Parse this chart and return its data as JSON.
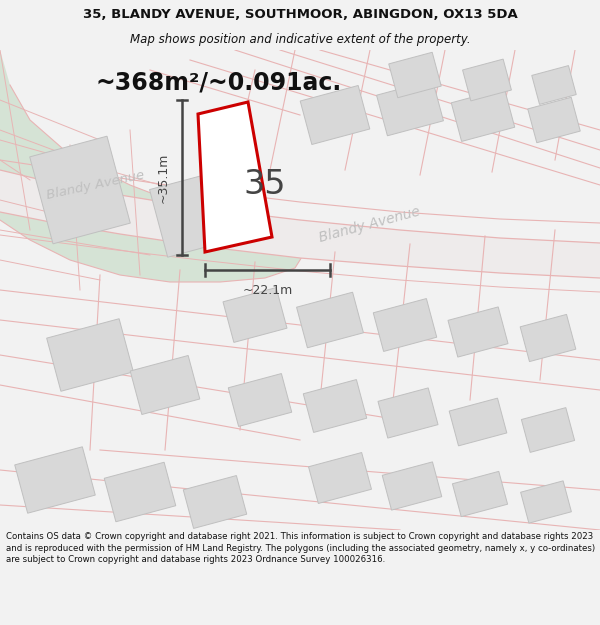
{
  "title_line1": "35, BLANDY AVENUE, SOUTHMOOR, ABINGDON, OX13 5DA",
  "title_line2": "Map shows position and indicative extent of the property.",
  "area_text": "~368m²/~0.091ac.",
  "number_label": "35",
  "dim_vertical": "~35.1m",
  "dim_horizontal": "~22.1m",
  "street_label_lower": "Blandy Avenue",
  "street_label_upper": "Blandy Avenue",
  "footer_text": "Contains OS data © Crown copyright and database right 2021. This information is subject to Crown copyright and database rights 2023 and is reproduced with the permission of HM Land Registry. The polygons (including the associated geometry, namely x, y co-ordinates) are subject to Crown copyright and database rights 2023 Ordnance Survey 100026316.",
  "bg_color": "#f2f2f2",
  "map_bg": "#ffffff",
  "green_color": "#d5e3d5",
  "cadastral_color": "#e8b4b4",
  "building_fill": "#d8d8d8",
  "building_edge": "#c0c0c0",
  "road_fill": "#f0eded",
  "road_edge": "#e0c8c8",
  "plot_color": "#cc0000",
  "plot_fill": "#ffffff",
  "dim_color": "#444444",
  "title_color": "#111111",
  "footer_color": "#111111",
  "area_color": "#111111",
  "street_color": "#c0c0c0"
}
